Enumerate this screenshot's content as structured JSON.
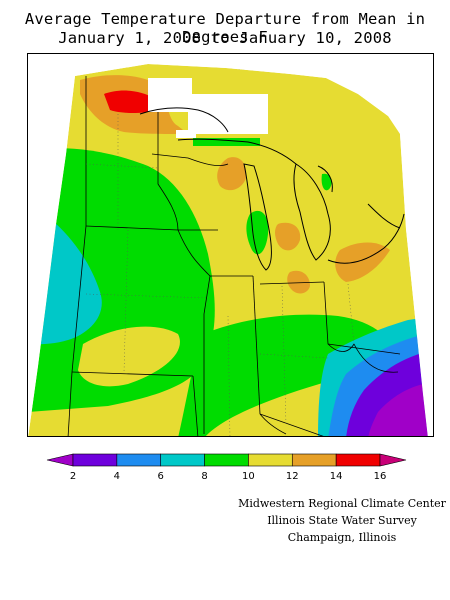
{
  "title": {
    "line1": "Average Temperature Departure from Mean in Degrees F",
    "line2": "January 1, 2008 to January 10, 2008"
  },
  "legend": {
    "ticks": [
      "2",
      "4",
      "6",
      "8",
      "10",
      "12",
      "14",
      "16"
    ],
    "colors": [
      "#a000c8",
      "#6e00dc",
      "#1e8cf0",
      "#00c8c8",
      "#00dc00",
      "#e6dc32",
      "#e6a028",
      "#f00000",
      "#c80078"
    ]
  },
  "credits": {
    "line1": "Midwestern Regional Climate Center",
    "line2": "Illinois State Water Survey",
    "line3": "Champaign, Illinois"
  }
}
